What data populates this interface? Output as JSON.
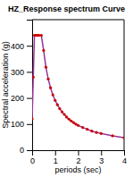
{
  "chart_data": {
    "type": "line",
    "title": "HZ_Response spectrum Curve",
    "x_label": "periods (sec)",
    "y_label": "Spectral acceleration (g)",
    "x": [
      0.0,
      0.05,
      0.1,
      0.15,
      0.2,
      0.25,
      0.3,
      0.4,
      0.5,
      0.6,
      0.7,
      0.8,
      0.9,
      1.0,
      1.1,
      1.2,
      1.3,
      1.4,
      1.5,
      1.6,
      1.7,
      1.8,
      1.9,
      2.0,
      2.2,
      2.4,
      2.6,
      2.8,
      3.0,
      3.5,
      4.0
    ],
    "series": [
      {
        "type": "line",
        "color": "#993399",
        "values": [
          0.12,
          0.28,
          0.44,
          0.44,
          0.44,
          0.44,
          0.44,
          0.44,
          0.382,
          0.318,
          0.273,
          0.239,
          0.212,
          0.191,
          0.174,
          0.159,
          0.147,
          0.137,
          0.127,
          0.119,
          0.112,
          0.106,
          0.1,
          0.095,
          0.087,
          0.08,
          0.073,
          0.068,
          0.064,
          0.055,
          0.048
        ]
      },
      {
        "type": "scatter",
        "color": "#cc0000",
        "marker": "circle",
        "values": [
          0.12,
          0.28,
          0.44,
          0.44,
          0.44,
          0.44,
          0.44,
          0.44,
          0.382,
          0.318,
          0.273,
          0.239,
          0.212,
          0.191,
          0.174,
          0.159,
          0.147,
          0.137,
          0.127,
          0.119,
          0.112,
          0.106,
          0.1,
          0.095,
          0.087,
          0.08,
          0.073,
          0.068,
          0.064,
          0.055,
          0.048
        ]
      }
    ],
    "xlim": [
      0,
      4
    ],
    "ylim": [
      0,
      0.5
    ],
    "xticks": [
      0,
      1,
      2,
      3,
      4
    ],
    "yticks": [
      {
        "value": 0,
        "label": "0"
      },
      {
        "value": 0.1,
        "label": "100"
      },
      {
        "value": 0.2,
        "label": "200"
      },
      {
        "value": 0.3,
        "label": "300"
      },
      {
        "value": 0.4,
        "label": "400"
      }
    ],
    "grid": false
  }
}
